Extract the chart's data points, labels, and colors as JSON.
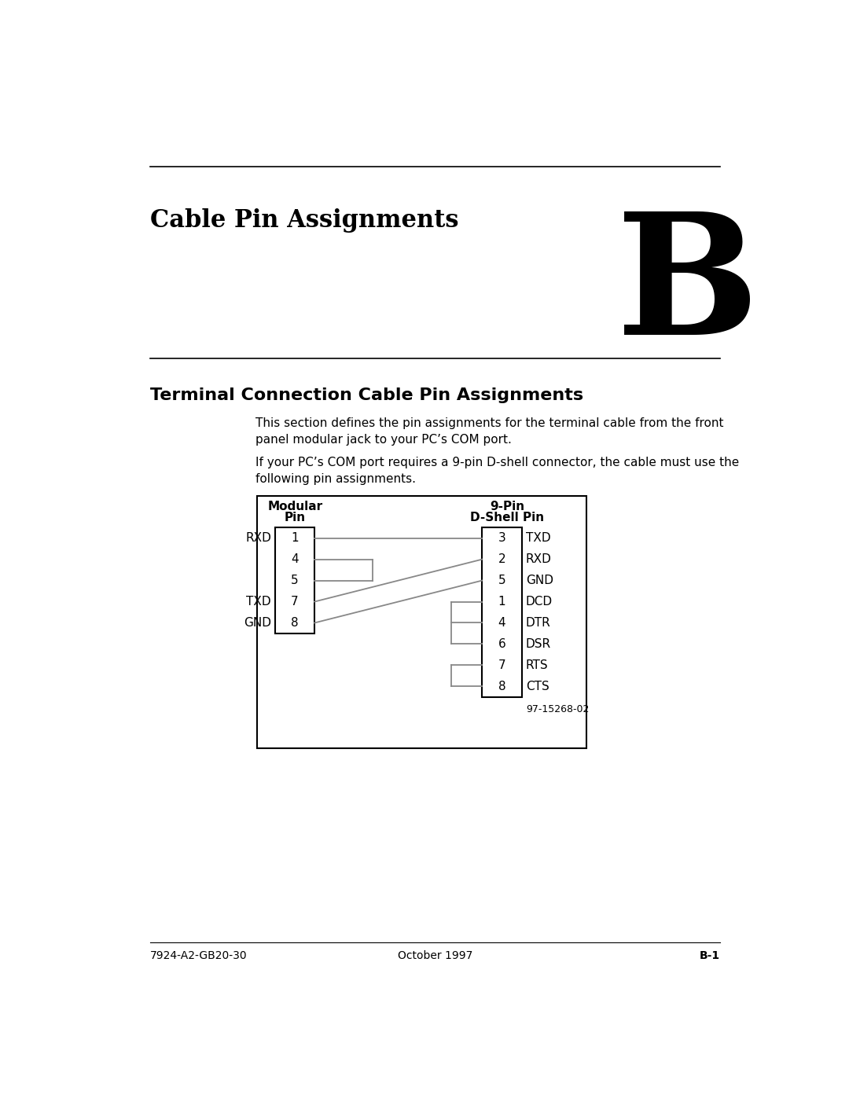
{
  "page_title": "Cable Pin Assignments",
  "chapter_letter": "B",
  "section_title": "Terminal Connection Cable Pin Assignments",
  "para1": "This section defines the pin assignments for the terminal cable from the front\npanel modular jack to your PC’s COM port.",
  "para2": "If your PC’s COM port requires a 9-pin D-shell connector, the cable must use the\nfollowing pin assignments.",
  "modular_header1": "Modular",
  "modular_header2": "Pin",
  "dshell_header1": "9-Pin",
  "dshell_header2": "D-Shell Pin",
  "modular_labels_left": [
    [
      "RXD",
      0
    ],
    [
      "TXD",
      3
    ],
    [
      "GND",
      4
    ]
  ],
  "dshell_labels_right": [
    [
      "TXD",
      0
    ],
    [
      "RXD",
      1
    ],
    [
      "GND",
      2
    ],
    [
      "DCD",
      3
    ],
    [
      "DTR",
      4
    ],
    [
      "DSR",
      5
    ],
    [
      "RTS",
      6
    ],
    [
      "CTS",
      7
    ]
  ],
  "mod_pin_numbers": [
    "1",
    "4",
    "5",
    "7",
    "8"
  ],
  "dsh_pin_numbers": [
    "3",
    "2",
    "5",
    "1",
    "4",
    "6",
    "7",
    "8"
  ],
  "figure_label": "97-15268-02",
  "footer_left": "7924-A2-GB20-30",
  "footer_center": "October 1997",
  "footer_right": "B-1",
  "bg_color": "#ffffff",
  "text_color": "#000000",
  "box_color": "#000000",
  "line_color": "#888888"
}
